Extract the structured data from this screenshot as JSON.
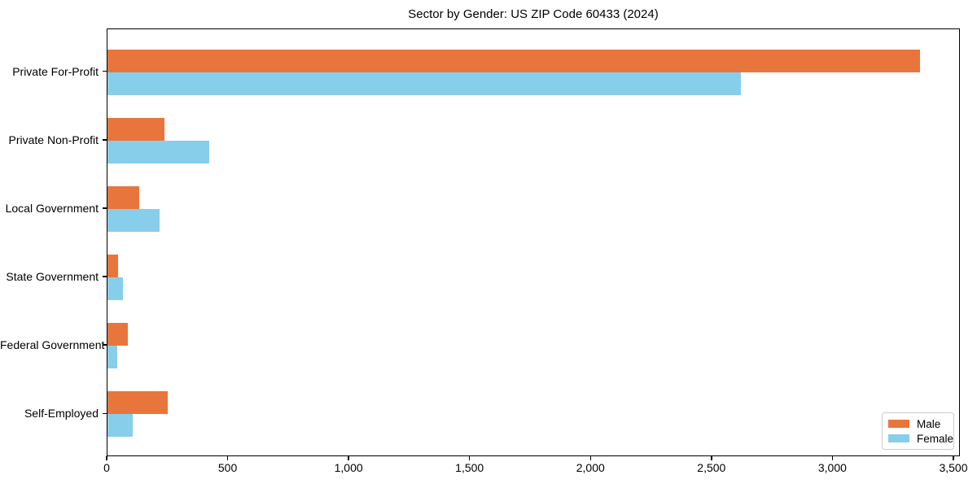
{
  "chart_data": {
    "type": "bar",
    "orientation": "horizontal",
    "title": "Sector by Gender: US ZIP Code 60433 (2024)",
    "categories": [
      "Private For-Profit",
      "Private Non-Profit",
      "Local Government",
      "State Government",
      "Federal Government",
      "Self-Employed"
    ],
    "series": [
      {
        "name": "Male",
        "color": "#E8763C",
        "values": [
          3360,
          235,
          130,
          45,
          85,
          250
        ]
      },
      {
        "name": "Female",
        "color": "#87CEEB",
        "values": [
          2620,
          420,
          215,
          65,
          40,
          105
        ]
      }
    ],
    "xlim": [
      0,
      3527
    ],
    "x_ticks": [
      0,
      500,
      1000,
      1500,
      2000,
      2500,
      3000,
      3500
    ],
    "x_tick_labels": [
      "0",
      "500",
      "1,000",
      "1,500",
      "2,000",
      "2,500",
      "3,000",
      "3,500"
    ],
    "ylabel": "",
    "xlabel": "",
    "grid": false,
    "legend_position": "lower right"
  }
}
